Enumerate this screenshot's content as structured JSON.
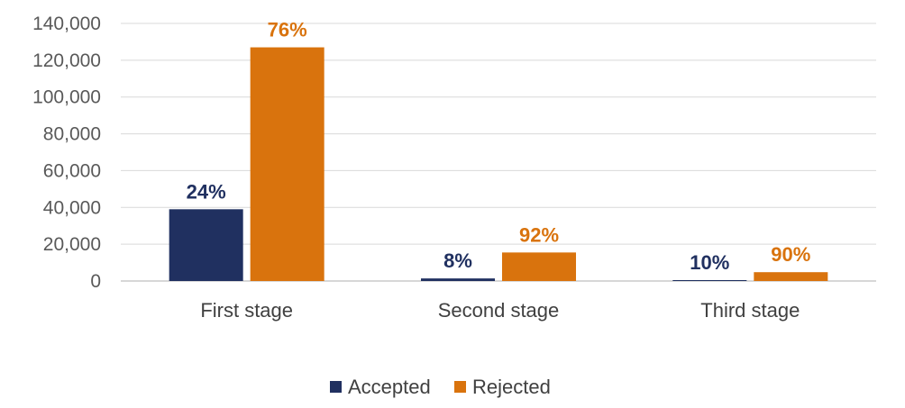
{
  "chart_data": {
    "type": "bar",
    "title": "",
    "xlabel": "",
    "ylabel": "",
    "categories": [
      "First stage",
      "Second stage",
      "Third stage"
    ],
    "series": [
      {
        "name": "Accepted",
        "color": "#203060",
        "values": [
          39000,
          1400,
          500
        ],
        "labels": [
          "24%",
          "8%",
          "10%"
        ]
      },
      {
        "name": "Rejected",
        "color": "#D9730D",
        "values": [
          127000,
          15500,
          4800
        ],
        "labels": [
          "76%",
          "92%",
          "90%"
        ]
      }
    ],
    "ylim": [
      0,
      140000
    ],
    "yticks": [
      0,
      20000,
      40000,
      60000,
      80000,
      100000,
      120000,
      140000
    ],
    "ytick_labels": [
      "0",
      "20,000",
      "40,000",
      "60,000",
      "80,000",
      "100,000",
      "120,000",
      "140,000"
    ],
    "grid": true,
    "legend_position": "bottom"
  }
}
